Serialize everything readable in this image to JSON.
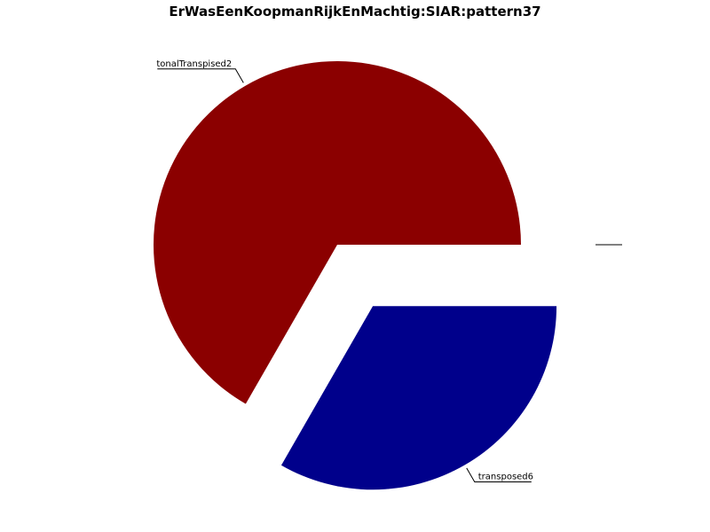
{
  "chart_data": {
    "type": "pie",
    "title": "ErWasEenKoopmanRijkEnMachtig:SIAR:pattern37",
    "slices": [
      {
        "label": "tonalTranspised2",
        "value": 0.667,
        "color": "#8b0000",
        "exploded": false
      },
      {
        "label": "transposed6",
        "value": 0.333,
        "color": "#00008b",
        "exploded": true
      },
      {
        "label": "",
        "value": 0.0,
        "color": "#ffffff",
        "exploded": true
      },
      {
        "label": "",
        "value": 0.0,
        "color": "#ffffff",
        "exploded": true
      }
    ]
  }
}
